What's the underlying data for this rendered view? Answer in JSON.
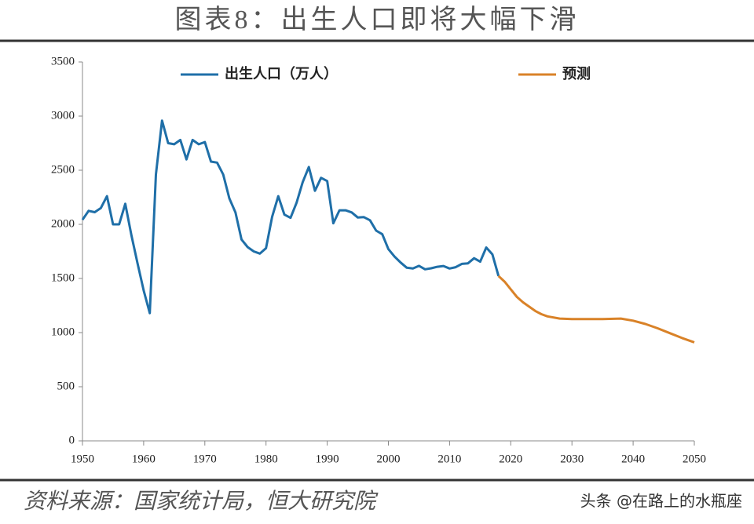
{
  "chart_data": {
    "type": "line",
    "title": "图表8：出生人口即将大幅下滑",
    "source": "资料来源：国家统计局，恒大研究院",
    "watermark": "头条 @在路上的水瓶座",
    "xlim": [
      1950,
      2050
    ],
    "xticks": [
      1950,
      1960,
      1970,
      1980,
      1990,
      2000,
      2010,
      2020,
      2030,
      2040,
      2050
    ],
    "ylim": [
      0,
      3500
    ],
    "yticks": [
      0,
      500,
      1000,
      1500,
      2000,
      2500,
      3000,
      3500
    ],
    "grid": false,
    "legend": "top",
    "series": [
      {
        "name": "出生人口（万人）",
        "color": "#1f6fa8",
        "x": [
          1950,
          1951,
          1952,
          1953,
          1954,
          1955,
          1956,
          1957,
          1958,
          1959,
          1960,
          1961,
          1962,
          1963,
          1964,
          1965,
          1966,
          1967,
          1968,
          1969,
          1970,
          1971,
          1972,
          1973,
          1974,
          1975,
          1976,
          1977,
          1978,
          1979,
          1980,
          1981,
          1982,
          1983,
          1984,
          1985,
          1986,
          1987,
          1988,
          1989,
          1990,
          1991,
          1992,
          1993,
          1994,
          1995,
          1996,
          1997,
          1998,
          1999,
          2000,
          2001,
          2002,
          2003,
          2004,
          2005,
          2006,
          2007,
          2008,
          2009,
          2010,
          2011,
          2012,
          2013,
          2014,
          2015,
          2016,
          2017,
          2018
        ],
        "values": [
          2042,
          2125,
          2112,
          2151,
          2260,
          2000,
          2000,
          2190,
          1900,
          1640,
          1390,
          1180,
          2460,
          2959,
          2750,
          2740,
          2780,
          2600,
          2780,
          2740,
          2760,
          2580,
          2570,
          2460,
          2240,
          2110,
          1860,
          1790,
          1750,
          1730,
          1780,
          2070,
          2260,
          2090,
          2060,
          2200,
          2390,
          2530,
          2310,
          2430,
          2400,
          2010,
          2130,
          2130,
          2110,
          2063,
          2067,
          2038,
          1942,
          1909,
          1771,
          1702,
          1647,
          1599,
          1593,
          1617,
          1585,
          1594,
          1608,
          1615,
          1592,
          1604,
          1635,
          1640,
          1687,
          1655,
          1786,
          1723,
          1523
        ]
      },
      {
        "name": "预测",
        "color": "#d98228",
        "x": [
          2018,
          2019,
          2020,
          2021,
          2022,
          2023,
          2024,
          2025,
          2026,
          2028,
          2030,
          2035,
          2038,
          2040,
          2042,
          2044,
          2046,
          2048,
          2050
        ],
        "values": [
          1523,
          1470,
          1400,
          1330,
          1280,
          1240,
          1200,
          1170,
          1150,
          1130,
          1125,
          1125,
          1130,
          1110,
          1080,
          1040,
          995,
          950,
          910
        ]
      }
    ]
  }
}
